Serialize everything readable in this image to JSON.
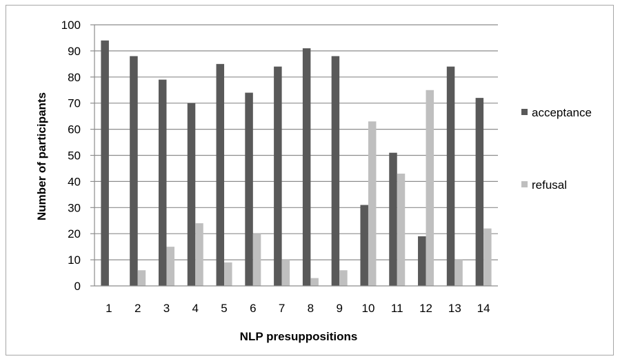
{
  "chart_data": {
    "type": "bar",
    "title": "",
    "xlabel": "NLP presuppositions",
    "ylabel": "Number of participants",
    "ylim": [
      0,
      100
    ],
    "yticks": [
      "0",
      "10",
      "20",
      "30",
      "40",
      "50",
      "60",
      "70",
      "80",
      "90",
      "100"
    ],
    "categories": [
      "1",
      "2",
      "3",
      "4",
      "5",
      "6",
      "7",
      "8",
      "9",
      "10",
      "11",
      "12",
      "13",
      "14"
    ],
    "series": [
      {
        "name": "acceptance",
        "color": "#595959",
        "values": [
          94,
          88,
          79,
          70,
          85,
          74,
          84,
          91,
          88,
          31,
          51,
          19,
          84,
          72
        ]
      },
      {
        "name": "refusal",
        "color": "#bfbfbf",
        "values": [
          0,
          6,
          15,
          24,
          9,
          20,
          10,
          3,
          6,
          63,
          43,
          75,
          10,
          22
        ]
      }
    ],
    "grid": true,
    "legend_position": "right"
  }
}
